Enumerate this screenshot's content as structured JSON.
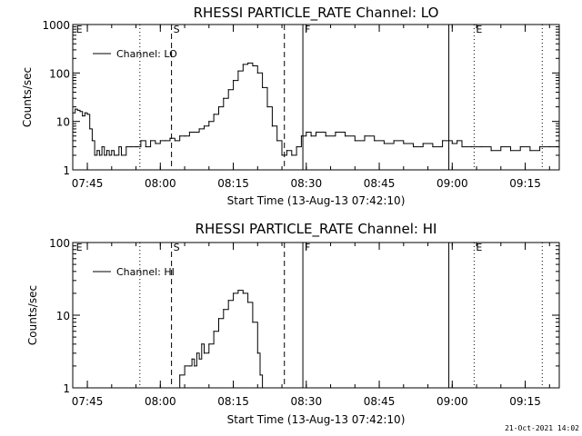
{
  "chart_data": [
    {
      "type": "line",
      "title": "RHESSI PARTICLE_RATE Channel: LO",
      "xlabel": "Start Time (13-Aug-13 07:42:10)",
      "ylabel": "Counts/sec",
      "yscale": "log",
      "ylim": [
        1,
        1000
      ],
      "xlim_minutes_from_0742": [
        0,
        100
      ],
      "x_ticks": [
        {
          "label": "07:45",
          "t": 3
        },
        {
          "label": "08:00",
          "t": 18
        },
        {
          "label": "08:15",
          "t": 33
        },
        {
          "label": "08:30",
          "t": 48
        },
        {
          "label": "08:45",
          "t": 63
        },
        {
          "label": "09:00",
          "t": 78
        },
        {
          "label": "09:15",
          "t": 93
        }
      ],
      "y_ticks": [
        {
          "label": "1",
          "v": 1
        },
        {
          "label": "10",
          "v": 10
        },
        {
          "label": "100",
          "v": 100
        },
        {
          "label": "1000",
          "v": 1000
        }
      ],
      "legend": {
        "label": "Channel: LO",
        "position": "top-left"
      },
      "markers": [
        {
          "label": "E",
          "t": 0.3,
          "style": "solid-edge"
        },
        {
          "label": "",
          "t": 13.8,
          "style": "dotted"
        },
        {
          "label": "S",
          "t": 20.3,
          "style": "dashed"
        },
        {
          "label": "",
          "t": 43.5,
          "style": "dashed"
        },
        {
          "label": "F",
          "t": 47.3,
          "style": "solid"
        },
        {
          "label": "",
          "t": 77.3,
          "style": "solid"
        },
        {
          "label": "E",
          "t": 82.5,
          "style": "dotted"
        },
        {
          "label": "",
          "t": 96.5,
          "style": "dotted"
        }
      ],
      "series": [
        {
          "name": "",
          "x": [
            0,
            0.5,
            1,
            1.5,
            2,
            2.5,
            3,
            3.5,
            4,
            4.5,
            5,
            5.5,
            6,
            6.5,
            7,
            7.5,
            8,
            8.5,
            9,
            9.5,
            10,
            11,
            12,
            13,
            14,
            15,
            16,
            17,
            18,
            19,
            20,
            21,
            22,
            23,
            24,
            25,
            26,
            27,
            28,
            29,
            30,
            31,
            32,
            33,
            34,
            35,
            36,
            37,
            38,
            39,
            40,
            41,
            42,
            43,
            44,
            45,
            46,
            47,
            48,
            49,
            50,
            52,
            54,
            56,
            58,
            60,
            62,
            64,
            66,
            68,
            70,
            72,
            74,
            76,
            78,
            79,
            80,
            82,
            84,
            86,
            88,
            90,
            92,
            94,
            96,
            98,
            100
          ],
          "y": [
            15,
            18,
            17,
            16,
            13,
            15,
            14,
            7,
            4,
            2,
            2.5,
            2,
            3,
            2,
            2.5,
            2,
            2.5,
            2,
            2,
            3,
            2,
            3,
            3,
            3,
            4,
            3,
            4,
            3.5,
            4,
            4,
            4.5,
            4,
            5,
            5,
            6,
            6,
            7,
            8,
            10,
            14,
            20,
            30,
            45,
            70,
            110,
            150,
            160,
            140,
            100,
            50,
            20,
            8,
            4,
            2,
            2.5,
            2,
            3,
            5,
            6,
            5,
            6,
            5,
            6,
            5,
            4,
            5,
            4,
            3.5,
            4,
            3.5,
            3,
            3.5,
            3,
            4,
            3.5,
            4,
            3,
            3,
            3,
            2.5,
            3,
            2.5,
            3,
            2.5,
            3,
            3,
            3
          ]
        }
      ]
    },
    {
      "type": "line",
      "title": "RHESSI PARTICLE_RATE Channel: HI",
      "xlabel": "Start Time (13-Aug-13 07:42:10)",
      "ylabel": "Counts/sec",
      "yscale": "log",
      "ylim": [
        1,
        100
      ],
      "xlim_minutes_from_0742": [
        0,
        100
      ],
      "x_ticks": [
        {
          "label": "07:45",
          "t": 3
        },
        {
          "label": "08:00",
          "t": 18
        },
        {
          "label": "08:15",
          "t": 33
        },
        {
          "label": "08:30",
          "t": 48
        },
        {
          "label": "08:45",
          "t": 63
        },
        {
          "label": "09:00",
          "t": 78
        },
        {
          "label": "09:15",
          "t": 93
        }
      ],
      "y_ticks": [
        {
          "label": "1",
          "v": 1
        },
        {
          "label": "10",
          "v": 10
        },
        {
          "label": "100",
          "v": 100
        }
      ],
      "legend": {
        "label": "Channel: HI",
        "position": "top-left"
      },
      "markers": [
        {
          "label": "E",
          "t": 0.3,
          "style": "solid-edge"
        },
        {
          "label": "",
          "t": 13.8,
          "style": "dotted"
        },
        {
          "label": "S",
          "t": 20.3,
          "style": "dashed"
        },
        {
          "label": "",
          "t": 43.5,
          "style": "dashed"
        },
        {
          "label": "F",
          "t": 47.3,
          "style": "solid"
        },
        {
          "label": "",
          "t": 77.3,
          "style": "solid"
        },
        {
          "label": "E",
          "t": 82.5,
          "style": "dotted"
        },
        {
          "label": "",
          "t": 96.5,
          "style": "dotted"
        }
      ],
      "series": [
        {
          "name": "",
          "x": [
            21.5,
            22,
            23,
            24,
            24.5,
            25,
            25.5,
            26,
            26.5,
            27,
            28,
            29,
            30,
            31,
            32,
            33,
            34,
            35,
            36,
            37,
            38,
            38.5,
            39
          ],
          "y": [
            1,
            1.5,
            2,
            2,
            2.5,
            2,
            3,
            2.5,
            4,
            3,
            4,
            6,
            9,
            12,
            16,
            20,
            22,
            20,
            15,
            8,
            3,
            1.5,
            1
          ]
        }
      ]
    }
  ],
  "timestamp": "21-Oct-2021 14:02"
}
